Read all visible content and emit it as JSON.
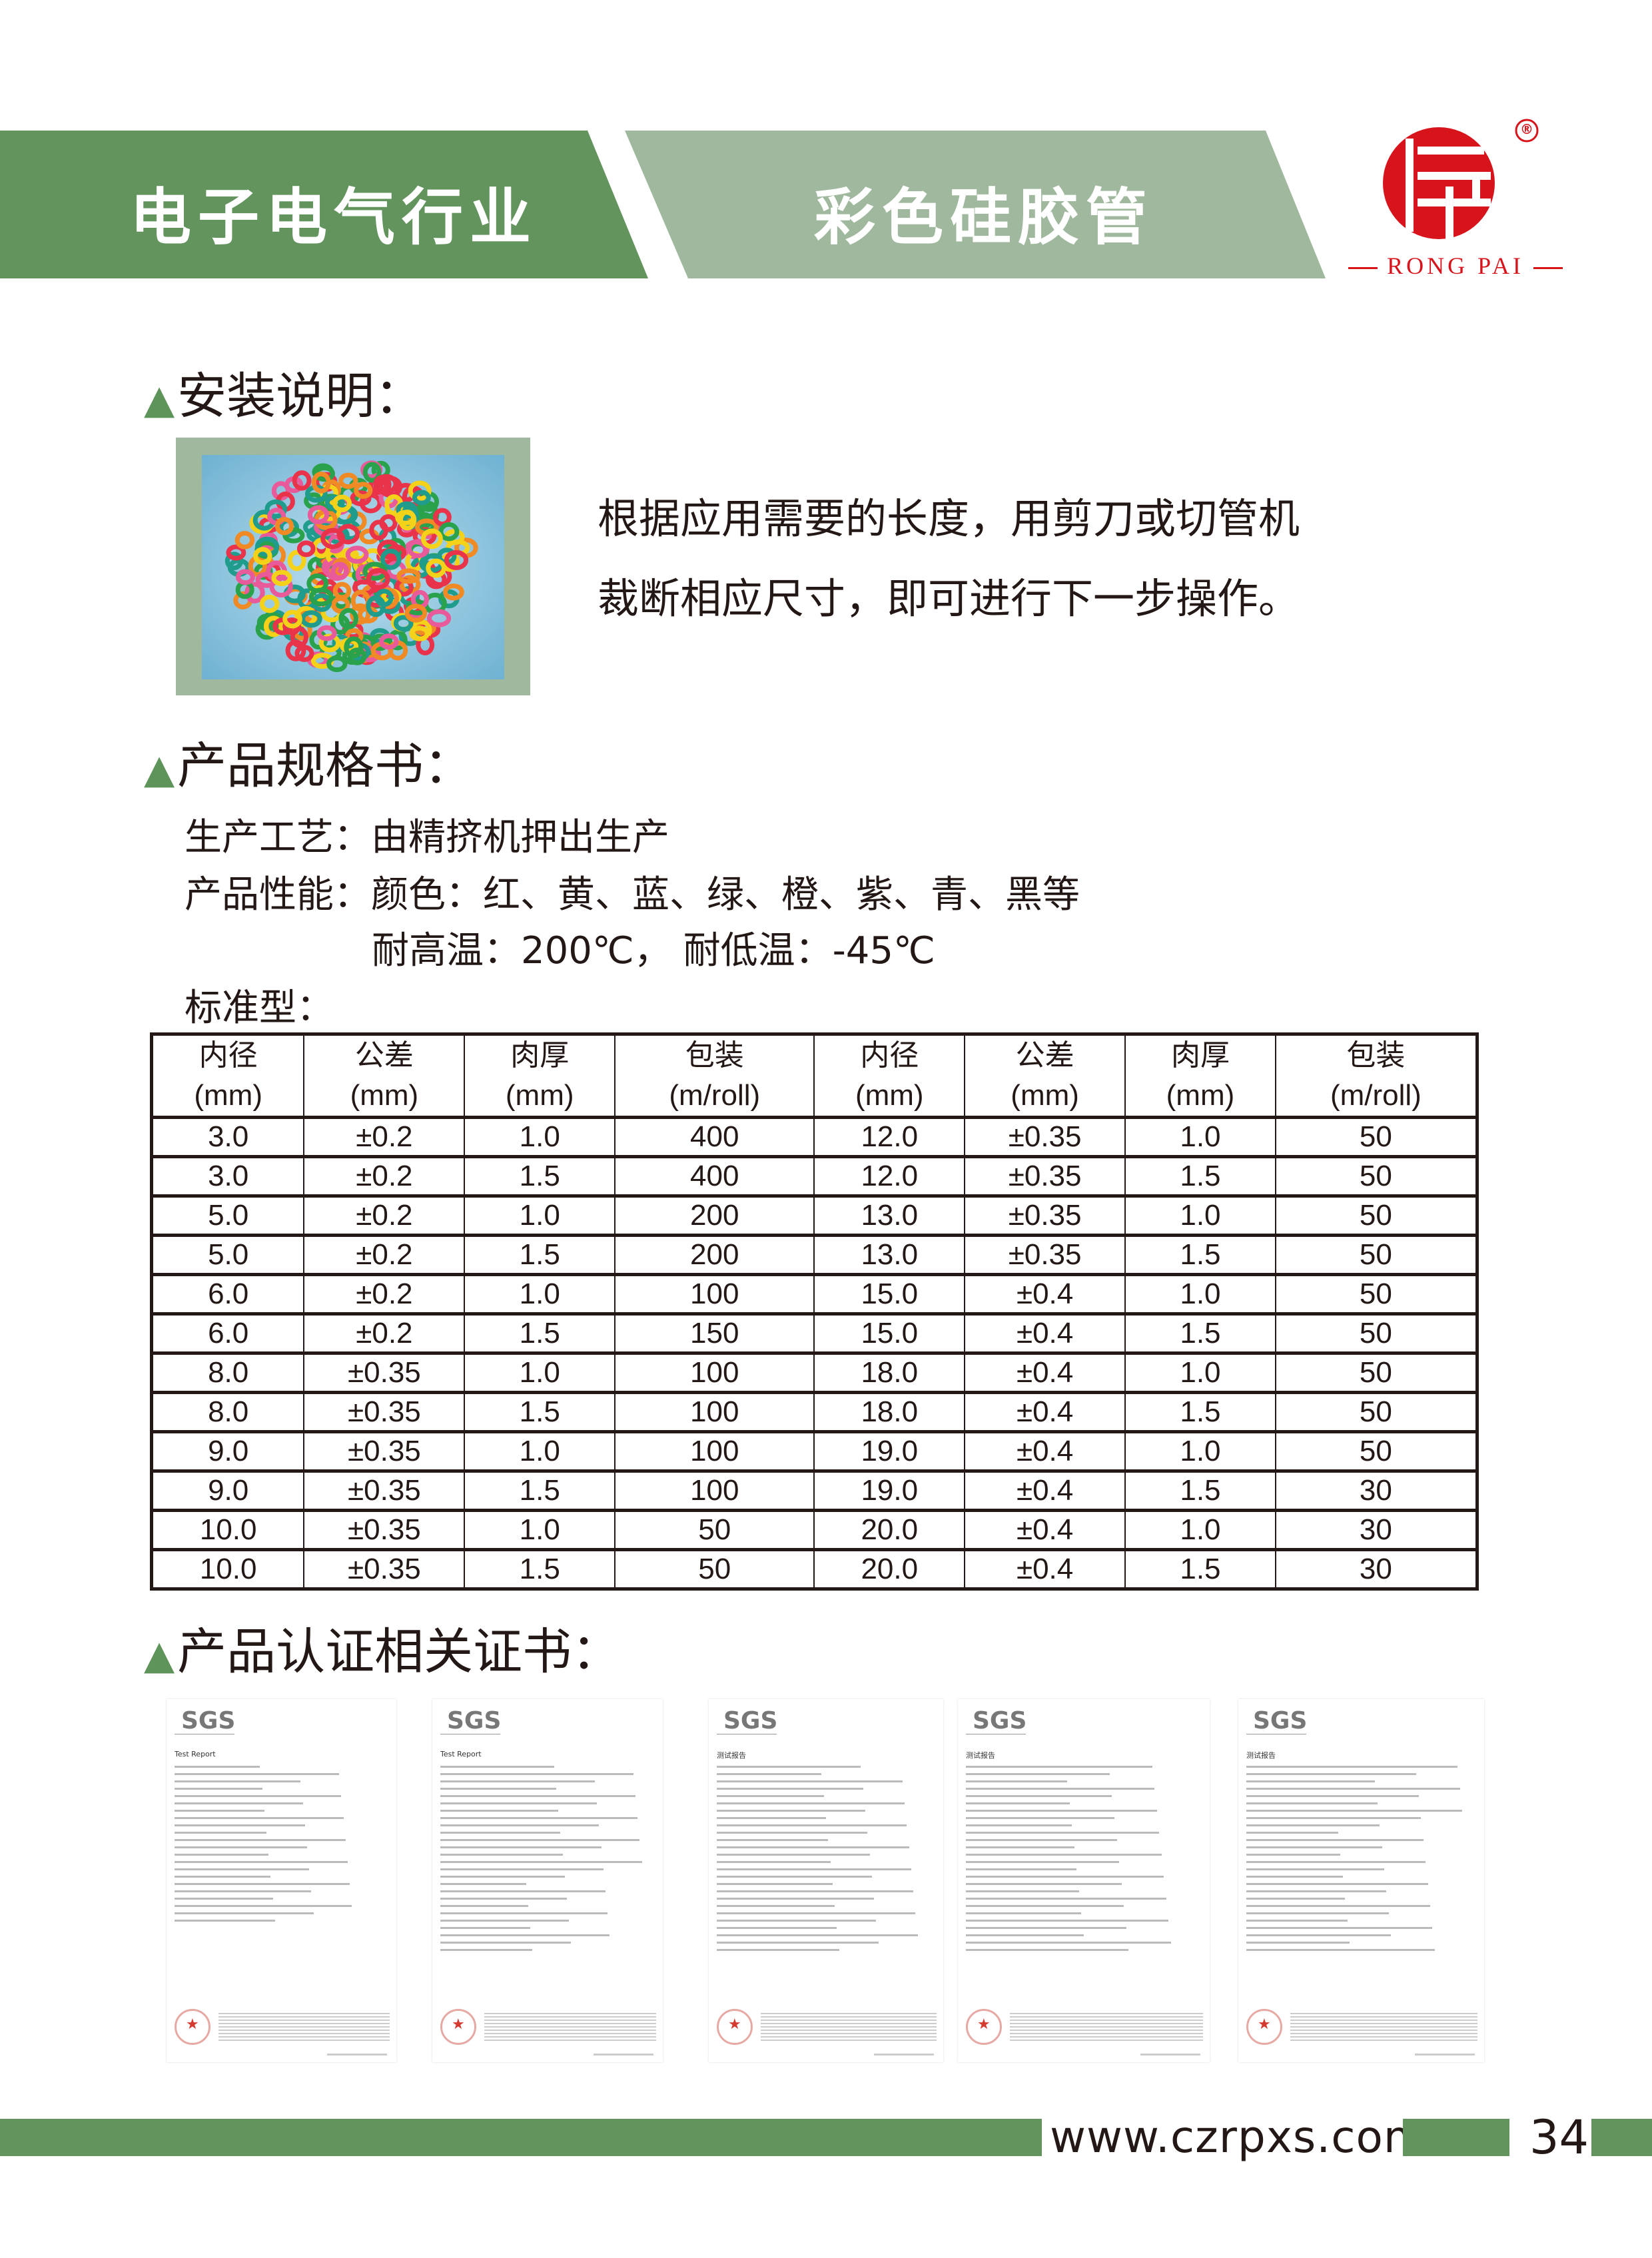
{
  "header": {
    "industry": "电子电气行业",
    "product": "彩色硅胶管",
    "logo_text": "RONG PAI",
    "registered_mark": "®",
    "colors": {
      "dark_green": "#63945e",
      "light_green": "#a0b89d",
      "logo_red": "#d7141c"
    }
  },
  "install": {
    "title": "安装说明：",
    "lines": [
      "根据应用需要的长度，用剪刀或切管机",
      "裁断相应尺寸，即可进行下一步操作。"
    ]
  },
  "spec": {
    "title": "产品规格书：",
    "process": "生产工艺：由精挤机押出生产",
    "performance": "产品性能：颜色：红、黄、蓝、绿、橙、紫、青、黑等",
    "temperature": "耐高温：200℃， 耐低温：-45℃",
    "standard": "标准型：",
    "table": {
      "headers": [
        [
          "内径",
          "(mm)"
        ],
        [
          "公差",
          "(mm)"
        ],
        [
          "肉厚",
          "(mm)"
        ],
        [
          "包装",
          "(m/roll)"
        ],
        [
          "内径",
          "(mm)"
        ],
        [
          "公差",
          "(mm)"
        ],
        [
          "肉厚",
          "(mm)"
        ],
        [
          "包装",
          "(m/roll)"
        ]
      ],
      "rows": [
        [
          "3.0",
          "±0.2",
          "1.0",
          "400",
          "12.0",
          "±0.35",
          "1.0",
          "50"
        ],
        [
          "3.0",
          "±0.2",
          "1.5",
          "400",
          "12.0",
          "±0.35",
          "1.5",
          "50"
        ],
        [
          "5.0",
          "±0.2",
          "1.0",
          "200",
          "13.0",
          "±0.35",
          "1.0",
          "50"
        ],
        [
          "5.0",
          "±0.2",
          "1.5",
          "200",
          "13.0",
          "±0.35",
          "1.5",
          "50"
        ],
        [
          "6.0",
          "±0.2",
          "1.0",
          "100",
          "15.0",
          "±0.4",
          "1.0",
          "50"
        ],
        [
          "6.0",
          "±0.2",
          "1.5",
          "150",
          "15.0",
          "±0.4",
          "1.5",
          "50"
        ],
        [
          "8.0",
          "±0.35",
          "1.0",
          "100",
          "18.0",
          "±0.4",
          "1.0",
          "50"
        ],
        [
          "8.0",
          "±0.35",
          "1.5",
          "100",
          "18.0",
          "±0.4",
          "1.5",
          "50"
        ],
        [
          "9.0",
          "±0.35",
          "1.0",
          "100",
          "19.0",
          "±0.4",
          "1.0",
          "50"
        ],
        [
          "9.0",
          "±0.35",
          "1.5",
          "100",
          "19.0",
          "±0.4",
          "1.5",
          "30"
        ],
        [
          "10.0",
          "±0.35",
          "1.0",
          "50",
          "20.0",
          "±0.4",
          "1.0",
          "30"
        ],
        [
          "10.0",
          "±0.35",
          "1.5",
          "50",
          "20.0",
          "±0.4",
          "1.5",
          "30"
        ]
      ]
    }
  },
  "certs": {
    "title": "产品认证相关证书：",
    "items": [
      {
        "brand": "SGS",
        "heading": "Test Report"
      },
      {
        "brand": "SGS",
        "heading": "Test Report"
      },
      {
        "brand": "SGS",
        "heading": "测试报告"
      },
      {
        "brand": "SGS",
        "heading": "测试报告"
      },
      {
        "brand": "SGS",
        "heading": "测试报告"
      }
    ]
  },
  "footer": {
    "url": "www.czrpxs.com",
    "page": "34"
  }
}
